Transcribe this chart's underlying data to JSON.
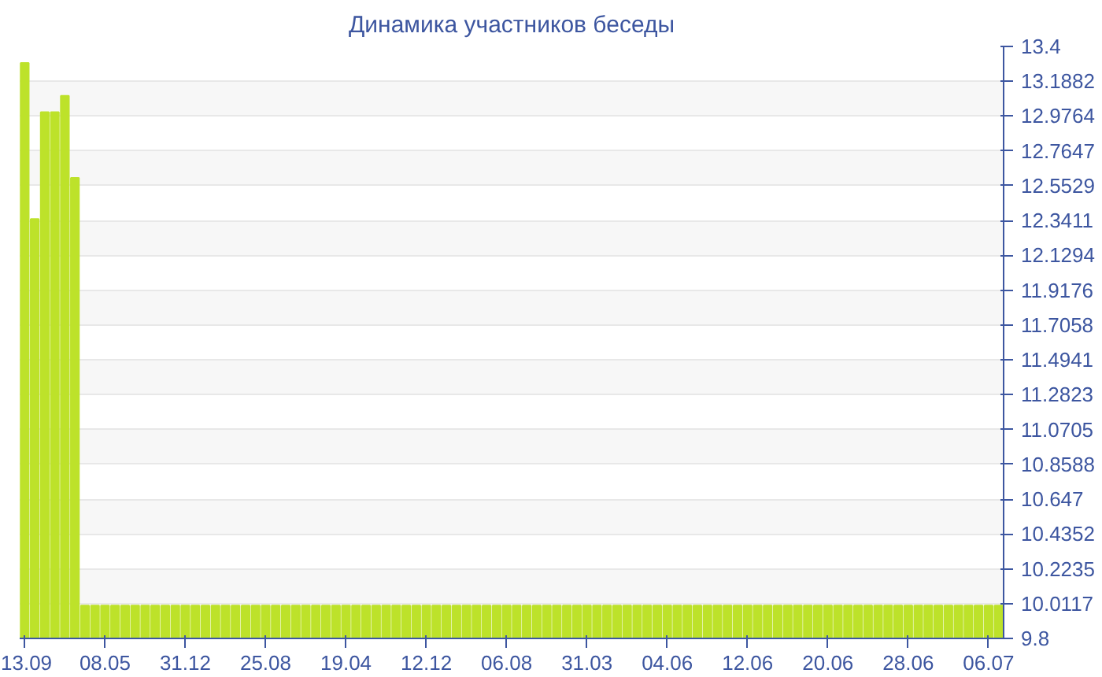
{
  "chart_data": {
    "type": "bar",
    "title": "Динамика участников беседы",
    "categories": [
      "13.09",
      null,
      null,
      null,
      null,
      null,
      null,
      null,
      "08.05",
      null,
      null,
      null,
      null,
      null,
      null,
      null,
      "31.12",
      null,
      null,
      null,
      null,
      null,
      null,
      null,
      "25.08",
      null,
      null,
      null,
      null,
      null,
      null,
      null,
      "19.04",
      null,
      null,
      null,
      null,
      null,
      null,
      null,
      "12.12",
      null,
      null,
      null,
      null,
      null,
      null,
      null,
      "06.08",
      null,
      null,
      null,
      null,
      null,
      null,
      null,
      "31.03",
      null,
      null,
      null,
      null,
      null,
      null,
      null,
      "04.06",
      null,
      null,
      null,
      null,
      null,
      null,
      null,
      "12.06",
      null,
      null,
      null,
      null,
      null,
      null,
      null,
      "20.06",
      null,
      null,
      null,
      null,
      null,
      null,
      null,
      "28.06",
      null,
      null,
      null,
      null,
      null,
      null,
      null,
      "06.07",
      null
    ],
    "values": [
      13.3,
      12.35,
      13,
      13,
      13.1,
      12.6,
      10,
      10,
      10,
      10,
      10,
      10,
      10,
      10,
      10,
      10,
      10,
      10,
      10,
      10,
      10,
      10,
      10,
      10,
      10,
      10,
      10,
      10,
      10,
      10,
      10,
      10,
      10,
      10,
      10,
      10,
      10,
      10,
      10,
      10,
      10,
      10,
      10,
      10,
      10,
      10,
      10,
      10,
      10,
      10,
      10,
      10,
      10,
      10,
      10,
      10,
      10,
      10,
      10,
      10,
      10,
      10,
      10,
      10,
      10,
      10,
      10,
      10,
      10,
      10,
      10,
      10,
      10,
      10,
      10,
      10,
      10,
      10,
      10,
      10,
      10,
      10,
      10,
      10,
      10,
      10,
      10,
      10,
      10,
      10,
      10,
      10,
      10,
      10,
      10,
      10,
      10,
      10
    ],
    "color": "#bde22a",
    "ylim": [
      9.8,
      13.4
    ],
    "yticks": [
      9.8,
      10.0117,
      10.2235,
      10.4352,
      10.647,
      10.8588,
      11.0705,
      11.2823,
      11.4941,
      11.7058,
      11.9176,
      12.1294,
      12.3411,
      12.5529,
      12.7647,
      12.9764,
      13.1882,
      13.4
    ],
    "grid": "y"
  }
}
